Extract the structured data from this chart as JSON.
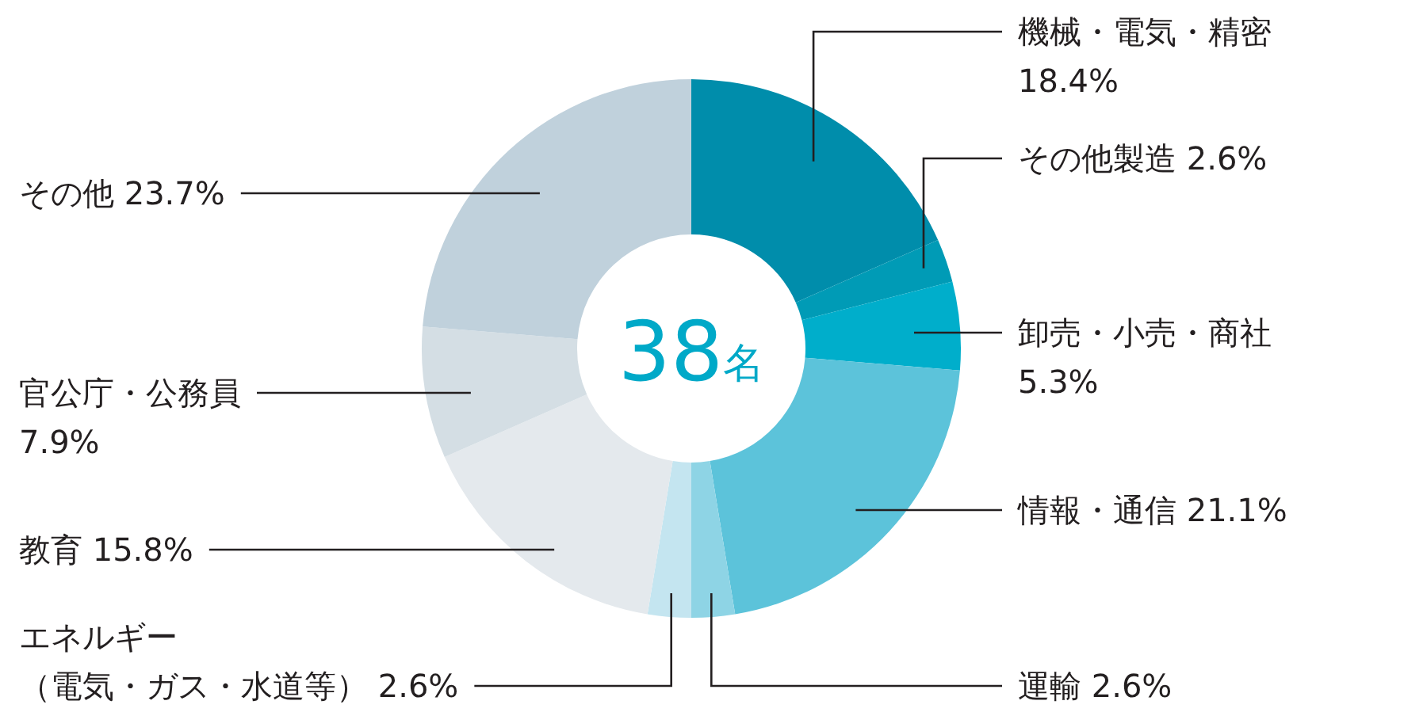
{
  "chart_data": {
    "type": "donut",
    "categories": [
      "機械・電気・精密",
      "その他製造",
      "卸売・小売・商社",
      "情報・通信",
      "運輸",
      "エネルギー（電気・ガス・水道等）",
      "教育",
      "官公庁・公務員",
      "その他"
    ],
    "values": [
      18.4,
      2.6,
      5.3,
      21.1,
      2.6,
      2.6,
      15.8,
      7.9,
      23.7
    ],
    "value_labels": [
      "18.4%",
      "2.6%",
      "5.3%",
      "21.1%",
      "2.6%",
      "2.6%",
      "15.8%",
      "7.9%",
      "23.7%"
    ],
    "colors": [
      "#008dab",
      "#009bb6",
      "#00aecb",
      "#5cc3da",
      "#8ed4e5",
      "#c4e5f0",
      "#e4e9ed",
      "#d4dee4",
      "#c0d1dc"
    ],
    "annotations": [
      "38名"
    ]
  }
}
